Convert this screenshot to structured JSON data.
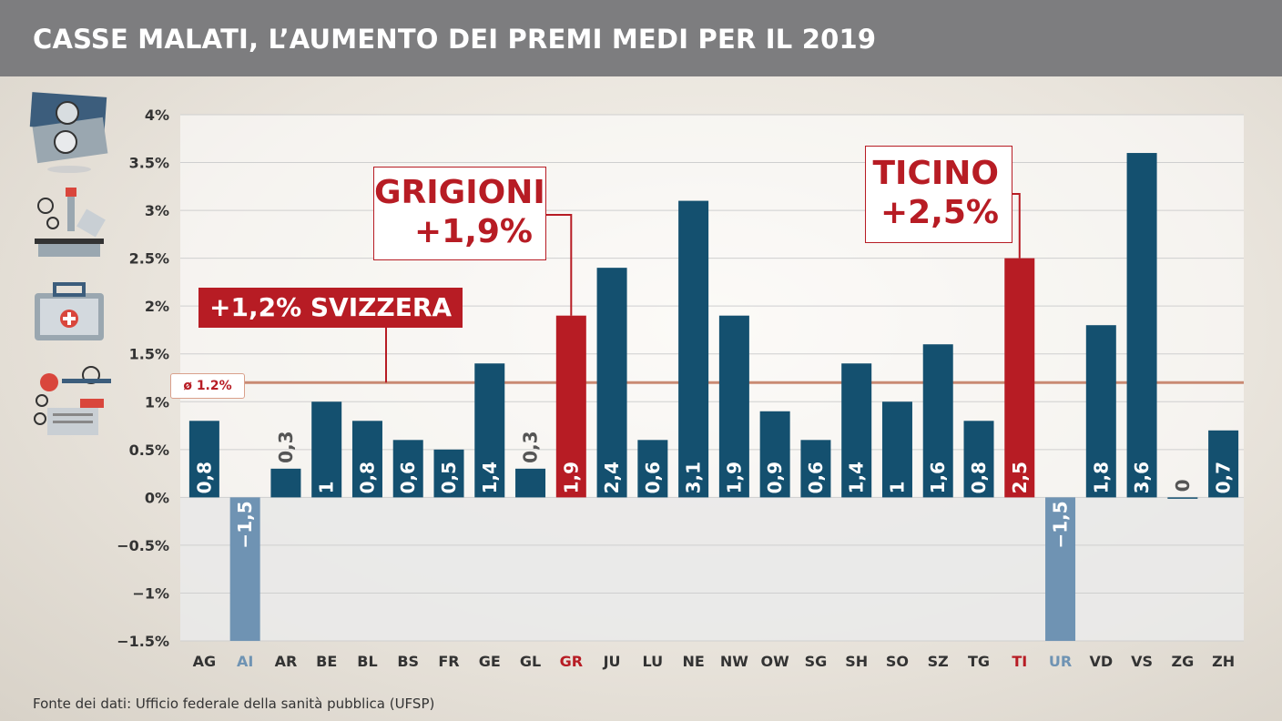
{
  "header": {
    "title": "CASSE MALATI, L’AUMENTO DEI PREMI MEDI PER IL 2019"
  },
  "source": "Fonte dei dati: Ufficio federale della sanità pubblica (UFSP)",
  "colors": {
    "bar_default": "#14506f",
    "bar_highlight": "#b71c24",
    "bar_negative": "#6f93b3",
    "average_line": "#c98a73"
  },
  "average": {
    "value": 1.2,
    "tag": "ø 1.2%",
    "label": "+1,2% SVIZZERA"
  },
  "callouts": {
    "grigioni": {
      "line1": "GRIGIONI",
      "line2": "+1,9%"
    },
    "ticino": {
      "line1": "TICINO",
      "line2": "+2,5%"
    }
  },
  "icons": [
    "banknotes-icon",
    "microscope-icon",
    "medical-kit-icon",
    "stethoscope-icon"
  ],
  "chart_data": {
    "type": "bar",
    "title": "CASSE MALATI, L’AUMENTO DEI PREMI MEDI PER IL 2019",
    "xlabel": "",
    "ylabel": "",
    "ylim": [
      -1.5,
      4
    ],
    "grid": true,
    "y_ticks": [
      {
        "v": 4,
        "label": "4%"
      },
      {
        "v": 3.5,
        "label": "3.5%"
      },
      {
        "v": 3,
        "label": "3%"
      },
      {
        "v": 2.5,
        "label": "2.5%"
      },
      {
        "v": 2,
        "label": "2%"
      },
      {
        "v": 1.5,
        "label": "1.5%"
      },
      {
        "v": 1,
        "label": "1%"
      },
      {
        "v": 0.5,
        "label": "0.5%"
      },
      {
        "v": 0,
        "label": "0%"
      },
      {
        "v": -0.5,
        "label": "−0.5%"
      },
      {
        "v": -1,
        "label": "−1%"
      },
      {
        "v": -1.5,
        "label": "−1.5%"
      }
    ],
    "categories": [
      "AG",
      "AI",
      "AR",
      "BE",
      "BL",
      "BS",
      "FR",
      "GE",
      "GL",
      "GR",
      "JU",
      "LU",
      "NE",
      "NW",
      "OW",
      "SG",
      "SH",
      "SO",
      "SZ",
      "TG",
      "TI",
      "UR",
      "VD",
      "VS",
      "ZG",
      "ZH"
    ],
    "values": [
      0.8,
      -1.5,
      0.3,
      1,
      0.8,
      0.6,
      0.5,
      1.4,
      0.3,
      1.9,
      2.4,
      0.6,
      3.1,
      1.9,
      0.9,
      0.6,
      1.4,
      1,
      1.6,
      0.8,
      2.5,
      -1.5,
      1.8,
      3.6,
      0,
      0.7
    ],
    "value_labels": [
      "0,8",
      "−1,5",
      "0,3",
      "1",
      "0,8",
      "0,6",
      "0,5",
      "1,4",
      "0,3",
      "1,9",
      "2,4",
      "0,6",
      "3,1",
      "1,9",
      "0,9",
      "0,6",
      "1,4",
      "1",
      "1,6",
      "0,8",
      "2,5",
      "−1,5",
      "1,8",
      "3,6",
      "0",
      "0,7"
    ],
    "highlight": [
      "GR",
      "TI"
    ],
    "average_line": 1.2
  }
}
